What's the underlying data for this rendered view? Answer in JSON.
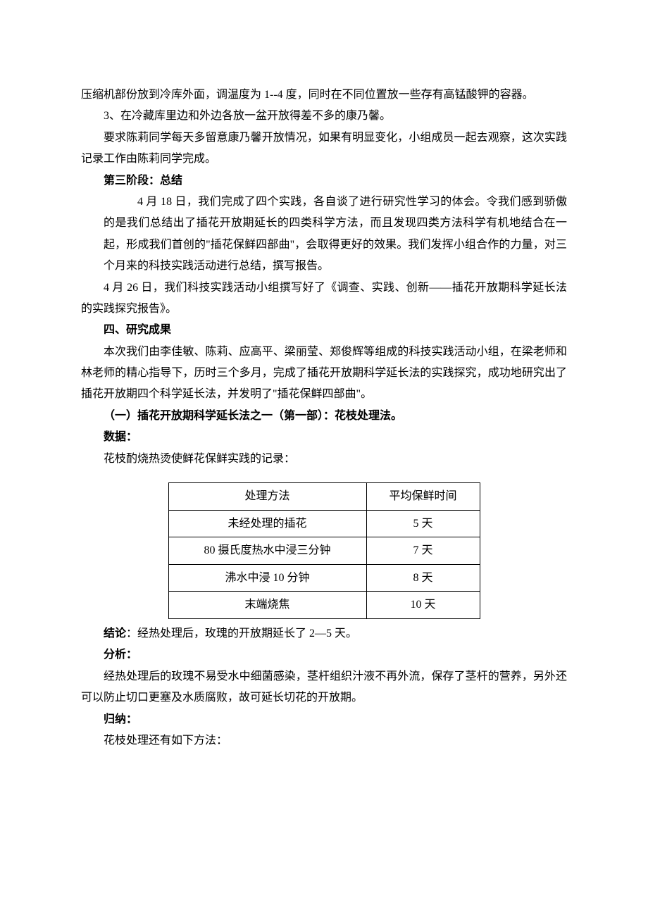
{
  "p1": "压缩机部份放到冷库外面，调温度为 1--4 度，同时在不同位置放一些存有高锰酸钾的容器。",
  "p2": "3、在冷藏库里边和外边各放一盆开放得差不多的康乃馨。",
  "p3": "要求陈莉同学每天多留意康乃馨开放情况，如果有明显变化，小组成员一起去观察，这次实践记录工作由陈莉同学完成。",
  "h_stage3": "第三阶段：总结",
  "block_p1": "4 月 18 日，我们完成了四个实践，各自谈了进行研究性学习的体会。令我们感到骄傲的是我们总结出了插花开放期延长的四类科学方法，而且发现四类方法科学有机地结合在一起，形成我们首创的\"插花保鲜四部曲\"，会取得更好的效果。我们发挥小组合作的力量，对三个月来的科技实践活动进行总结，撰写报告。",
  "p5": "4 月 26 日，我们科技实践活动小组撰写好了《调查、实践、创新——插花开放期科学延长法的实践探究报告》。",
  "h_sec4": "四、研究成果",
  "p6": "本次我们由李佳敏、陈莉、应高平、梁丽莹、郑俊辉等组成的科技实践活动小组，在梁老师和林老师的精心指导下，历时三个多月，完成了插花开放期科学延长法的实践探究，成功地研究出了插花开放期四个科学延长法，并发明了\"插花保鲜四部曲\"。",
  "h_sub1": "（一）插花开放期科学延长法之一（第一部）：花枝处理法。",
  "h_data": "数据：",
  "p7": "花枝酌烧热烫使鲜花保鲜实践的记录：",
  "table": {
    "headers": [
      "处理方法",
      "平均保鲜时间"
    ],
    "rows": [
      [
        "未经处理的插花",
        "5 天"
      ],
      [
        "80 摄氏度热水中浸三分钟",
        "7 天"
      ],
      [
        "沸水中浸 10 分钟",
        "8 天"
      ],
      [
        "末端烧焦",
        "10 天"
      ]
    ]
  },
  "conclusion_label": "结论",
  "conclusion_text": "：经热处理后，玫瑰的开放期延长了 2—5 天。",
  "h_analysis": "分析：",
  "p8": "经热处理后的玫瑰不易受水中细菌感染，茎杆组织汁液不再外流，保存了茎杆的营养，另外还可以防止切口更塞及水质腐败，故可延长切花的开放期。",
  "h_guina": "归纳：",
  "p9": "花枝处理还有如下方法："
}
